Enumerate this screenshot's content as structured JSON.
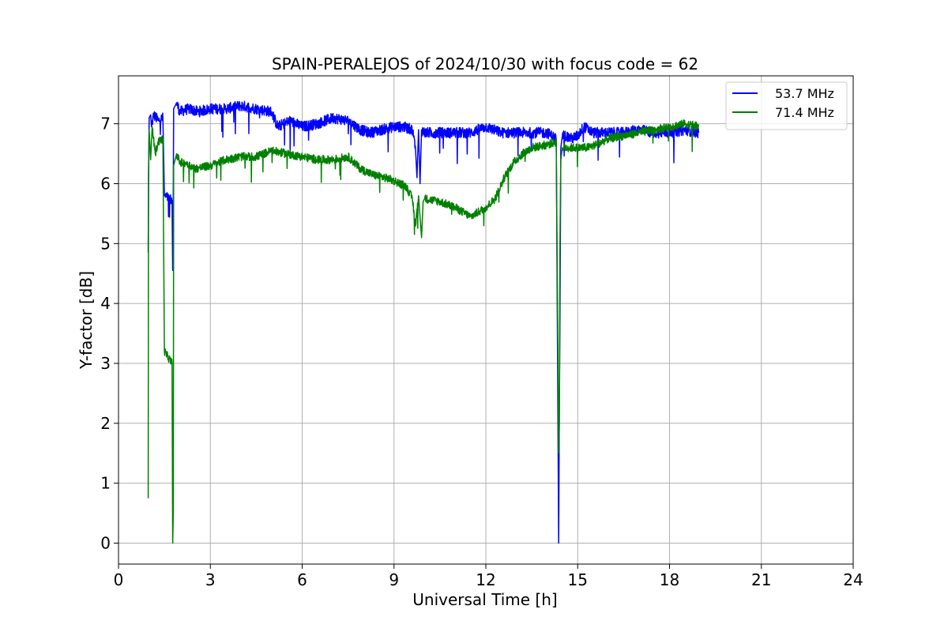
{
  "chart_data": {
    "type": "line",
    "title": "SPAIN-PERALEJOS of 2024/10/30 with focus code = 62",
    "xlabel": "Universal Time [h]",
    "ylabel": "Y-factor [dB]",
    "xlim": [
      0,
      24
    ],
    "ylim": [
      -0.35,
      7.8
    ],
    "xticks": [
      0,
      3,
      6,
      9,
      12,
      15,
      18,
      21,
      24
    ],
    "yticks": [
      0,
      1,
      2,
      3,
      4,
      5,
      6,
      7
    ],
    "grid": true,
    "legend_position": "top-right",
    "series": [
      {
        "name": "53.7 MHz",
        "color": "#0000ff",
        "noise": 0.09,
        "x": [
          0.97,
          0.98,
          1.0,
          1.05,
          1.08,
          1.15,
          1.3,
          1.45,
          1.5,
          1.75,
          1.77,
          1.79,
          1.8,
          1.85,
          1.9,
          2.0,
          2.3,
          2.6,
          3.0,
          3.5,
          4.0,
          4.5,
          5.0,
          5.2,
          5.6,
          6.0,
          6.5,
          7.0,
          7.5,
          7.9,
          8.2,
          8.6,
          9.0,
          9.3,
          9.6,
          9.7,
          9.75,
          9.8,
          9.85,
          9.9,
          10.0,
          10.5,
          11.0,
          11.5,
          12.0,
          12.5,
          13.0,
          13.5,
          14.0,
          14.3,
          14.38,
          14.4,
          14.42,
          14.45,
          14.5,
          14.6,
          14.8,
          15.0,
          15.2,
          15.5,
          16.0,
          16.5,
          17.0,
          17.5,
          18.0,
          18.5,
          18.95
        ],
        "y": [
          4.85,
          5.9,
          7.1,
          7.15,
          6.95,
          7.15,
          7.05,
          7.1,
          5.8,
          5.72,
          4.55,
          6.0,
          7.25,
          7.3,
          7.35,
          7.2,
          7.25,
          7.2,
          7.25,
          7.25,
          7.3,
          7.25,
          7.2,
          6.95,
          7.05,
          6.95,
          7.0,
          7.1,
          7.05,
          6.9,
          6.85,
          6.9,
          6.95,
          6.95,
          6.9,
          6.6,
          6.1,
          6.9,
          6.0,
          6.9,
          6.85,
          6.85,
          6.85,
          6.85,
          6.95,
          6.85,
          6.85,
          6.85,
          6.85,
          6.75,
          0.0,
          2.2,
          3.7,
          6.6,
          6.8,
          6.8,
          6.75,
          6.8,
          6.95,
          6.85,
          6.85,
          6.85,
          6.9,
          6.85,
          6.85,
          6.9,
          6.85
        ]
      },
      {
        "name": "71.4 MHz",
        "color": "#008000",
        "noise": 0.07,
        "x": [
          0.97,
          0.98,
          1.0,
          1.05,
          1.1,
          1.2,
          1.3,
          1.45,
          1.5,
          1.75,
          1.77,
          1.79,
          1.8,
          1.85,
          1.9,
          2.0,
          2.2,
          2.5,
          3.0,
          3.5,
          4.0,
          4.5,
          5.0,
          5.5,
          6.0,
          6.5,
          7.0,
          7.5,
          7.9,
          8.3,
          8.7,
          9.0,
          9.4,
          9.6,
          9.7,
          9.8,
          9.9,
          9.95,
          10.0,
          10.5,
          11.0,
          11.5,
          12.0,
          12.3,
          12.6,
          12.9,
          13.2,
          13.5,
          14.0,
          14.3,
          14.38,
          14.4,
          14.42,
          14.45,
          14.5,
          14.7,
          15.0,
          15.3,
          15.6,
          16.0,
          16.5,
          17.0,
          17.5,
          18.0,
          18.5,
          18.95
        ],
        "y": [
          0.75,
          6.2,
          6.9,
          6.4,
          6.95,
          6.5,
          6.7,
          6.75,
          3.2,
          3.0,
          0.0,
          0.5,
          6.3,
          6.4,
          6.5,
          6.35,
          6.35,
          6.25,
          6.3,
          6.4,
          6.45,
          6.45,
          6.55,
          6.5,
          6.45,
          6.4,
          6.4,
          6.45,
          6.25,
          6.15,
          6.1,
          6.05,
          5.95,
          5.75,
          5.3,
          5.8,
          5.1,
          5.7,
          5.75,
          5.7,
          5.6,
          5.45,
          5.6,
          5.75,
          6.1,
          6.35,
          6.5,
          6.6,
          6.65,
          6.7,
          1.5,
          2.0,
          5.0,
          6.4,
          6.6,
          6.6,
          6.6,
          6.6,
          6.65,
          6.75,
          6.8,
          6.85,
          6.9,
          6.95,
          7.0,
          6.95
        ]
      }
    ]
  }
}
